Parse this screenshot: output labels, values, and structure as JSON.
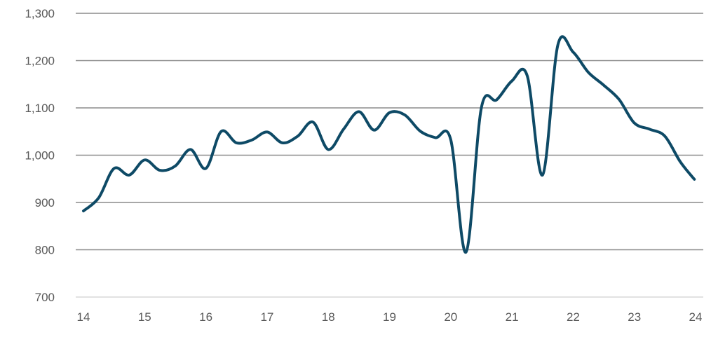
{
  "chart_data": {
    "type": "line",
    "title": "",
    "xlabel": "",
    "ylabel": "",
    "xlim": [
      14,
      24
    ],
    "ylim": [
      700,
      1300
    ],
    "x_ticks": [
      "14",
      "15",
      "16",
      "17",
      "18",
      "19",
      "20",
      "21",
      "22",
      "23",
      "24"
    ],
    "y_ticks": [
      "700",
      "800",
      "900",
      "1,000",
      "1,100",
      "1,200",
      "1,300"
    ],
    "grid": true,
    "legend": "none",
    "colors": {
      "line": "#0e4a66",
      "grid": "#8c8c8c",
      "axis": "#d9d9d9",
      "text": "#595959"
    },
    "series": [
      {
        "x": [
          14.0,
          14.25,
          14.5,
          14.75,
          15.0,
          15.25,
          15.5,
          15.75,
          16.0,
          16.25,
          16.5,
          16.75,
          17.0,
          17.25,
          17.5,
          17.75,
          18.0,
          18.25,
          18.5,
          18.75,
          19.0,
          19.25,
          19.5,
          19.75,
          20.0,
          20.25,
          20.5,
          20.75,
          21.0,
          21.25,
          21.5,
          21.75,
          22.0,
          22.25,
          22.5,
          22.75,
          23.0,
          23.25,
          23.5,
          23.75,
          23.98
        ],
        "values": [
          882,
          910,
          972,
          958,
          990,
          968,
          977,
          1012,
          972,
          1050,
          1026,
          1032,
          1049,
          1026,
          1040,
          1070,
          1012,
          1055,
          1092,
          1053,
          1090,
          1085,
          1051,
          1037,
          1033,
          795,
          1100,
          1117,
          1157,
          1168,
          958,
          1233,
          1218,
          1175,
          1148,
          1118,
          1068,
          1055,
          1040,
          986,
          949
        ]
      }
    ]
  }
}
